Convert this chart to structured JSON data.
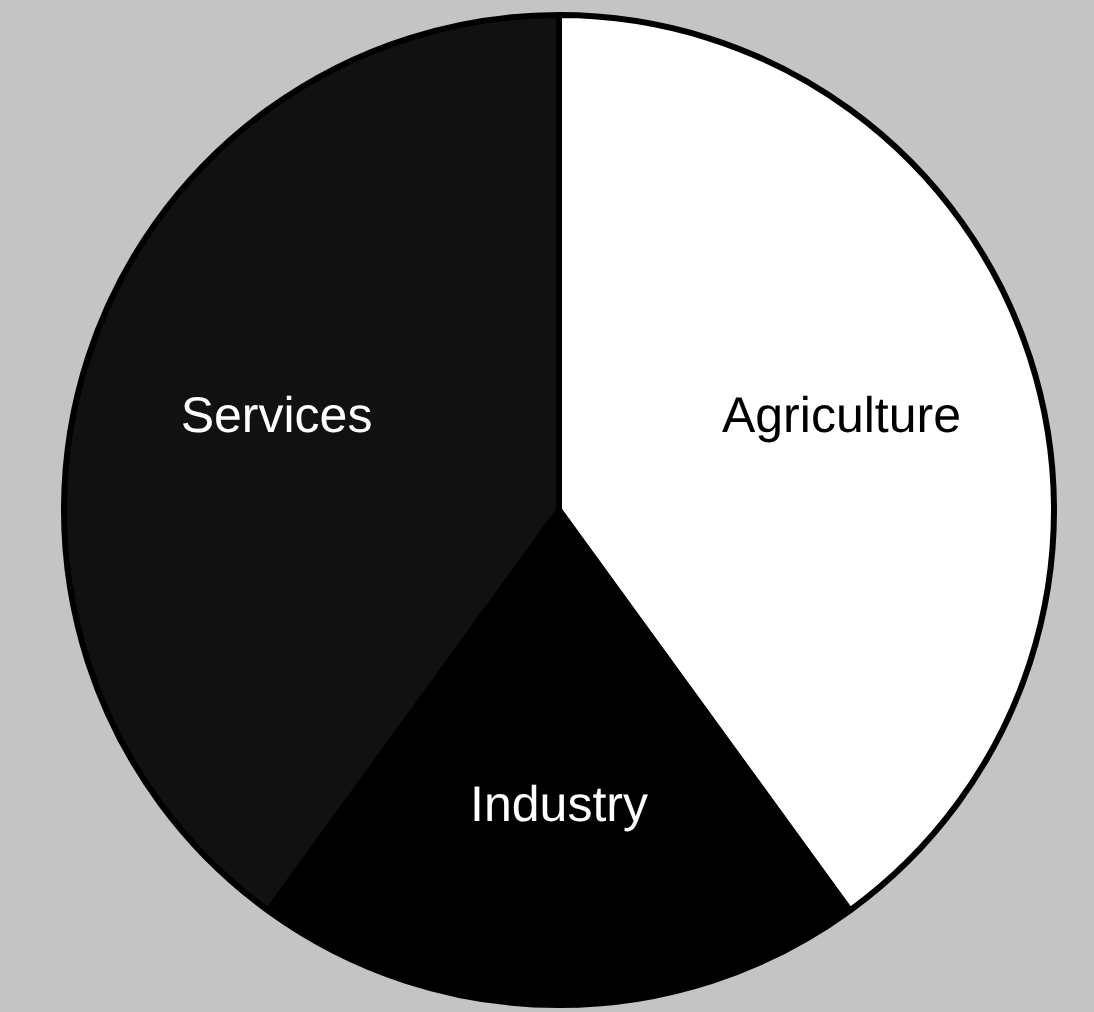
{
  "chart_data": {
    "type": "pie",
    "categories": [
      "Agriculture",
      "Industry",
      "Services"
    ],
    "values": [
      40,
      20,
      40
    ],
    "colors": [
      "#ffffff",
      "#000000",
      "#111111"
    ],
    "legend": false
  }
}
